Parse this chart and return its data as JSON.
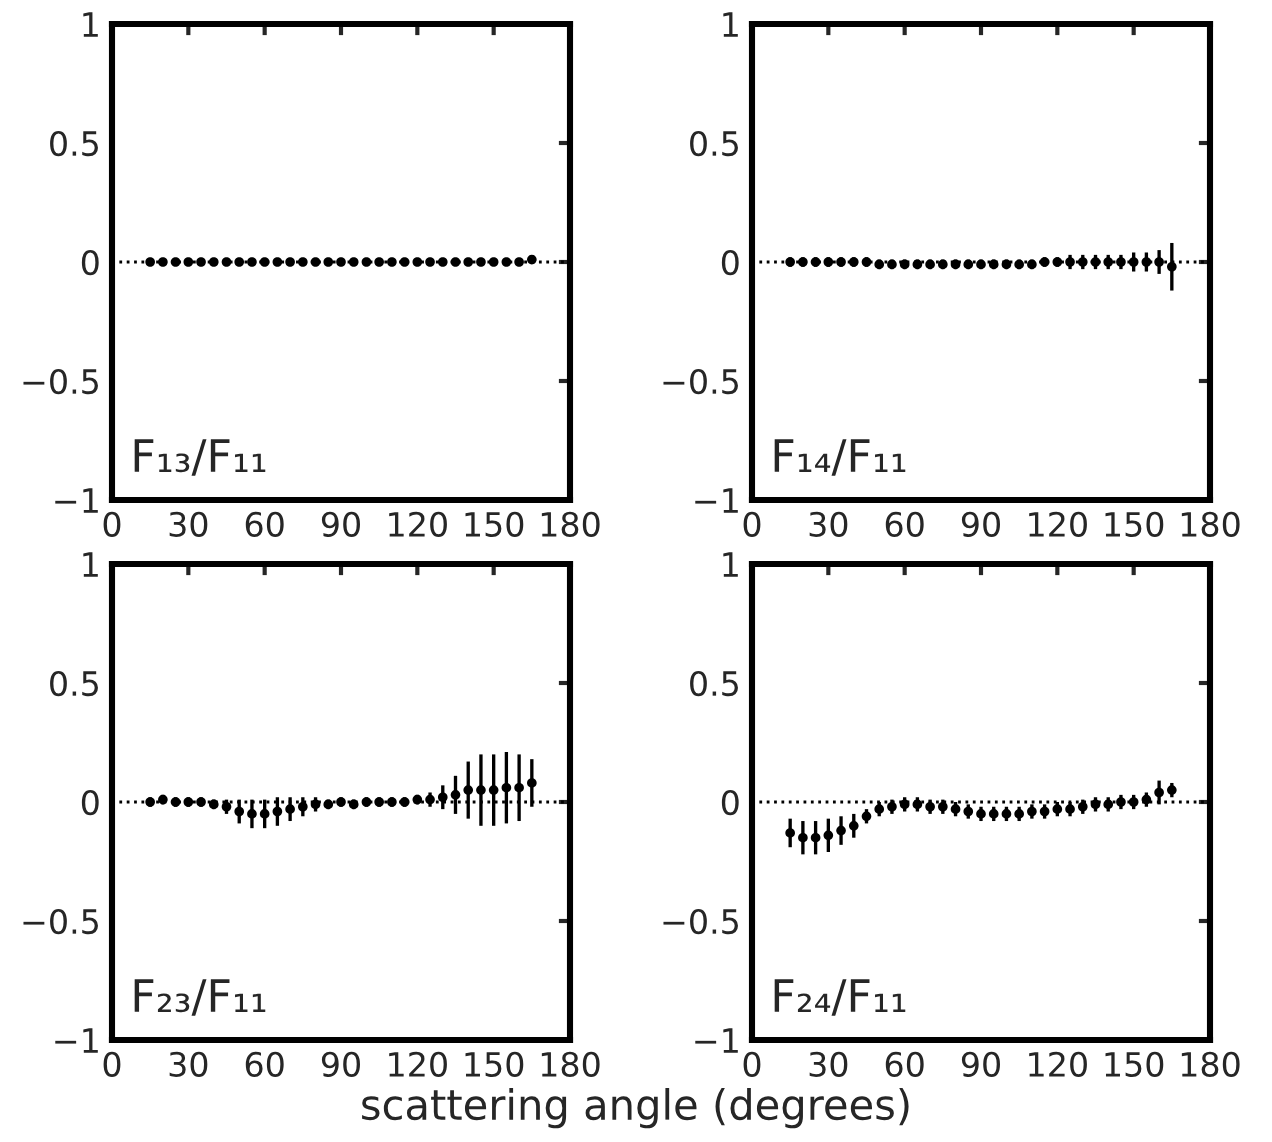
{
  "chart_data": [
    {
      "type": "scatter",
      "x": [
        15,
        20,
        25,
        30,
        35,
        40,
        45,
        50,
        55,
        60,
        65,
        70,
        75,
        80,
        85,
        90,
        95,
        100,
        105,
        110,
        115,
        120,
        125,
        130,
        135,
        140,
        145,
        150,
        155,
        160,
        165
      ],
      "series": [
        {
          "color": "#000000",
          "values": [
            0,
            0,
            0,
            0,
            0,
            0,
            0,
            0,
            0,
            0,
            0,
            0,
            0,
            0,
            0,
            0,
            0,
            0,
            0,
            0,
            0,
            0,
            0,
            0,
            0,
            0,
            0,
            0,
            0,
            0,
            0.01
          ]
        }
      ],
      "xlim": [
        0,
        180
      ],
      "xticks": [
        0,
        30,
        60,
        90,
        120,
        150,
        180
      ],
      "ylim": [
        -1,
        1
      ],
      "yticks": [
        -1,
        -0.5,
        0,
        0.5,
        1
      ],
      "ref_lines": [
        {
          "axis": "y",
          "value": 0,
          "color": "#000000",
          "line_style": "dotted"
        }
      ],
      "marker": "circle",
      "grid": false,
      "annotations": [
        "F₁₃/F₁₁"
      ]
    },
    {
      "type": "scatter",
      "x": [
        15,
        20,
        25,
        30,
        35,
        40,
        45,
        50,
        55,
        60,
        65,
        70,
        75,
        80,
        85,
        90,
        95,
        100,
        105,
        110,
        115,
        120,
        125,
        130,
        135,
        140,
        145,
        150,
        155,
        160,
        165
      ],
      "series": [
        {
          "color": "#000000",
          "values": [
            0,
            0,
            0,
            0,
            0,
            0,
            0,
            -0.01,
            -0.01,
            -0.01,
            -0.01,
            -0.01,
            -0.01,
            -0.01,
            -0.01,
            -0.01,
            -0.01,
            -0.01,
            -0.01,
            -0.01,
            0,
            0,
            0,
            0,
            0,
            0,
            0,
            0,
            0,
            0,
            -0.02
          ],
          "errors": [
            0.02,
            0.02,
            0.02,
            0.02,
            0.02,
            0.02,
            0.02,
            0.02,
            0.02,
            0.02,
            0.02,
            0.02,
            0.02,
            0.02,
            0.02,
            0.02,
            0.02,
            0.02,
            0.02,
            0.02,
            0.02,
            0.02,
            0.03,
            0.03,
            0.03,
            0.03,
            0.03,
            0.04,
            0.04,
            0.05,
            0.1
          ]
        }
      ],
      "xlim": [
        0,
        180
      ],
      "xticks": [
        0,
        30,
        60,
        90,
        120,
        150,
        180
      ],
      "ylim": [
        -1,
        1
      ],
      "yticks": [
        -1,
        -0.5,
        0,
        0.5,
        1
      ],
      "ref_lines": [
        {
          "axis": "y",
          "value": 0,
          "color": "#000000",
          "line_style": "dotted"
        }
      ],
      "marker": "circle",
      "grid": false,
      "annotations": [
        "F₁₄/F₁₁"
      ]
    },
    {
      "type": "scatter",
      "x": [
        15,
        20,
        25,
        30,
        35,
        40,
        45,
        50,
        55,
        60,
        65,
        70,
        75,
        80,
        85,
        90,
        95,
        100,
        105,
        110,
        115,
        120,
        125,
        130,
        135,
        140,
        145,
        150,
        155,
        160,
        165
      ],
      "series": [
        {
          "color": "#000000",
          "values": [
            0,
            0.01,
            0,
            0,
            0,
            -0.01,
            -0.02,
            -0.04,
            -0.05,
            -0.05,
            -0.04,
            -0.03,
            -0.02,
            -0.01,
            -0.01,
            0,
            -0.01,
            0,
            0,
            0,
            0,
            0.01,
            0.01,
            0.02,
            0.03,
            0.05,
            0.05,
            0.05,
            0.06,
            0.06,
            0.08
          ],
          "errors": [
            0.02,
            0.02,
            0.02,
            0.02,
            0.02,
            0.02,
            0.03,
            0.05,
            0.06,
            0.06,
            0.06,
            0.05,
            0.04,
            0.03,
            0.02,
            0.02,
            0.02,
            0.02,
            0.02,
            0.02,
            0.02,
            0.02,
            0.03,
            0.05,
            0.08,
            0.12,
            0.15,
            0.15,
            0.15,
            0.14,
            0.1
          ]
        }
      ],
      "xlim": [
        0,
        180
      ],
      "xticks": [
        0,
        30,
        60,
        90,
        120,
        150,
        180
      ],
      "ylim": [
        -1,
        1
      ],
      "yticks": [
        -1,
        -0.5,
        0,
        0.5,
        1
      ],
      "xlabel": "scattering angle (degrees)",
      "ref_lines": [
        {
          "axis": "y",
          "value": 0,
          "color": "#000000",
          "line_style": "dotted"
        }
      ],
      "marker": "circle",
      "grid": false,
      "annotations": [
        "F₂₃/F₁₁"
      ]
    },
    {
      "type": "scatter",
      "x": [
        15,
        20,
        25,
        30,
        35,
        40,
        45,
        50,
        55,
        60,
        65,
        70,
        75,
        80,
        85,
        90,
        95,
        100,
        105,
        110,
        115,
        120,
        125,
        130,
        135,
        140,
        145,
        150,
        155,
        160,
        165
      ],
      "series": [
        {
          "color": "#000000",
          "values": [
            -0.13,
            -0.15,
            -0.15,
            -0.14,
            -0.12,
            -0.1,
            -0.06,
            -0.03,
            -0.02,
            -0.01,
            -0.01,
            -0.02,
            -0.02,
            -0.03,
            -0.04,
            -0.05,
            -0.05,
            -0.05,
            -0.05,
            -0.04,
            -0.04,
            -0.03,
            -0.03,
            -0.02,
            -0.01,
            -0.01,
            0,
            0,
            0.01,
            0.04,
            0.05
          ],
          "errors": [
            0.06,
            0.07,
            0.07,
            0.07,
            0.06,
            0.05,
            0.03,
            0.03,
            0.03,
            0.03,
            0.03,
            0.03,
            0.03,
            0.03,
            0.03,
            0.03,
            0.03,
            0.03,
            0.03,
            0.03,
            0.03,
            0.03,
            0.03,
            0.03,
            0.03,
            0.03,
            0.03,
            0.03,
            0.03,
            0.05,
            0.03
          ]
        }
      ],
      "xlim": [
        0,
        180
      ],
      "xticks": [
        0,
        30,
        60,
        90,
        120,
        150,
        180
      ],
      "ylim": [
        -1,
        1
      ],
      "yticks": [
        -1,
        -0.5,
        0,
        0.5,
        1
      ],
      "ref_lines": [
        {
          "axis": "y",
          "value": 0,
          "color": "#000000",
          "line_style": "dotted"
        }
      ],
      "marker": "circle",
      "grid": false,
      "annotations": [
        "F₂₄/F₁₁"
      ]
    }
  ]
}
